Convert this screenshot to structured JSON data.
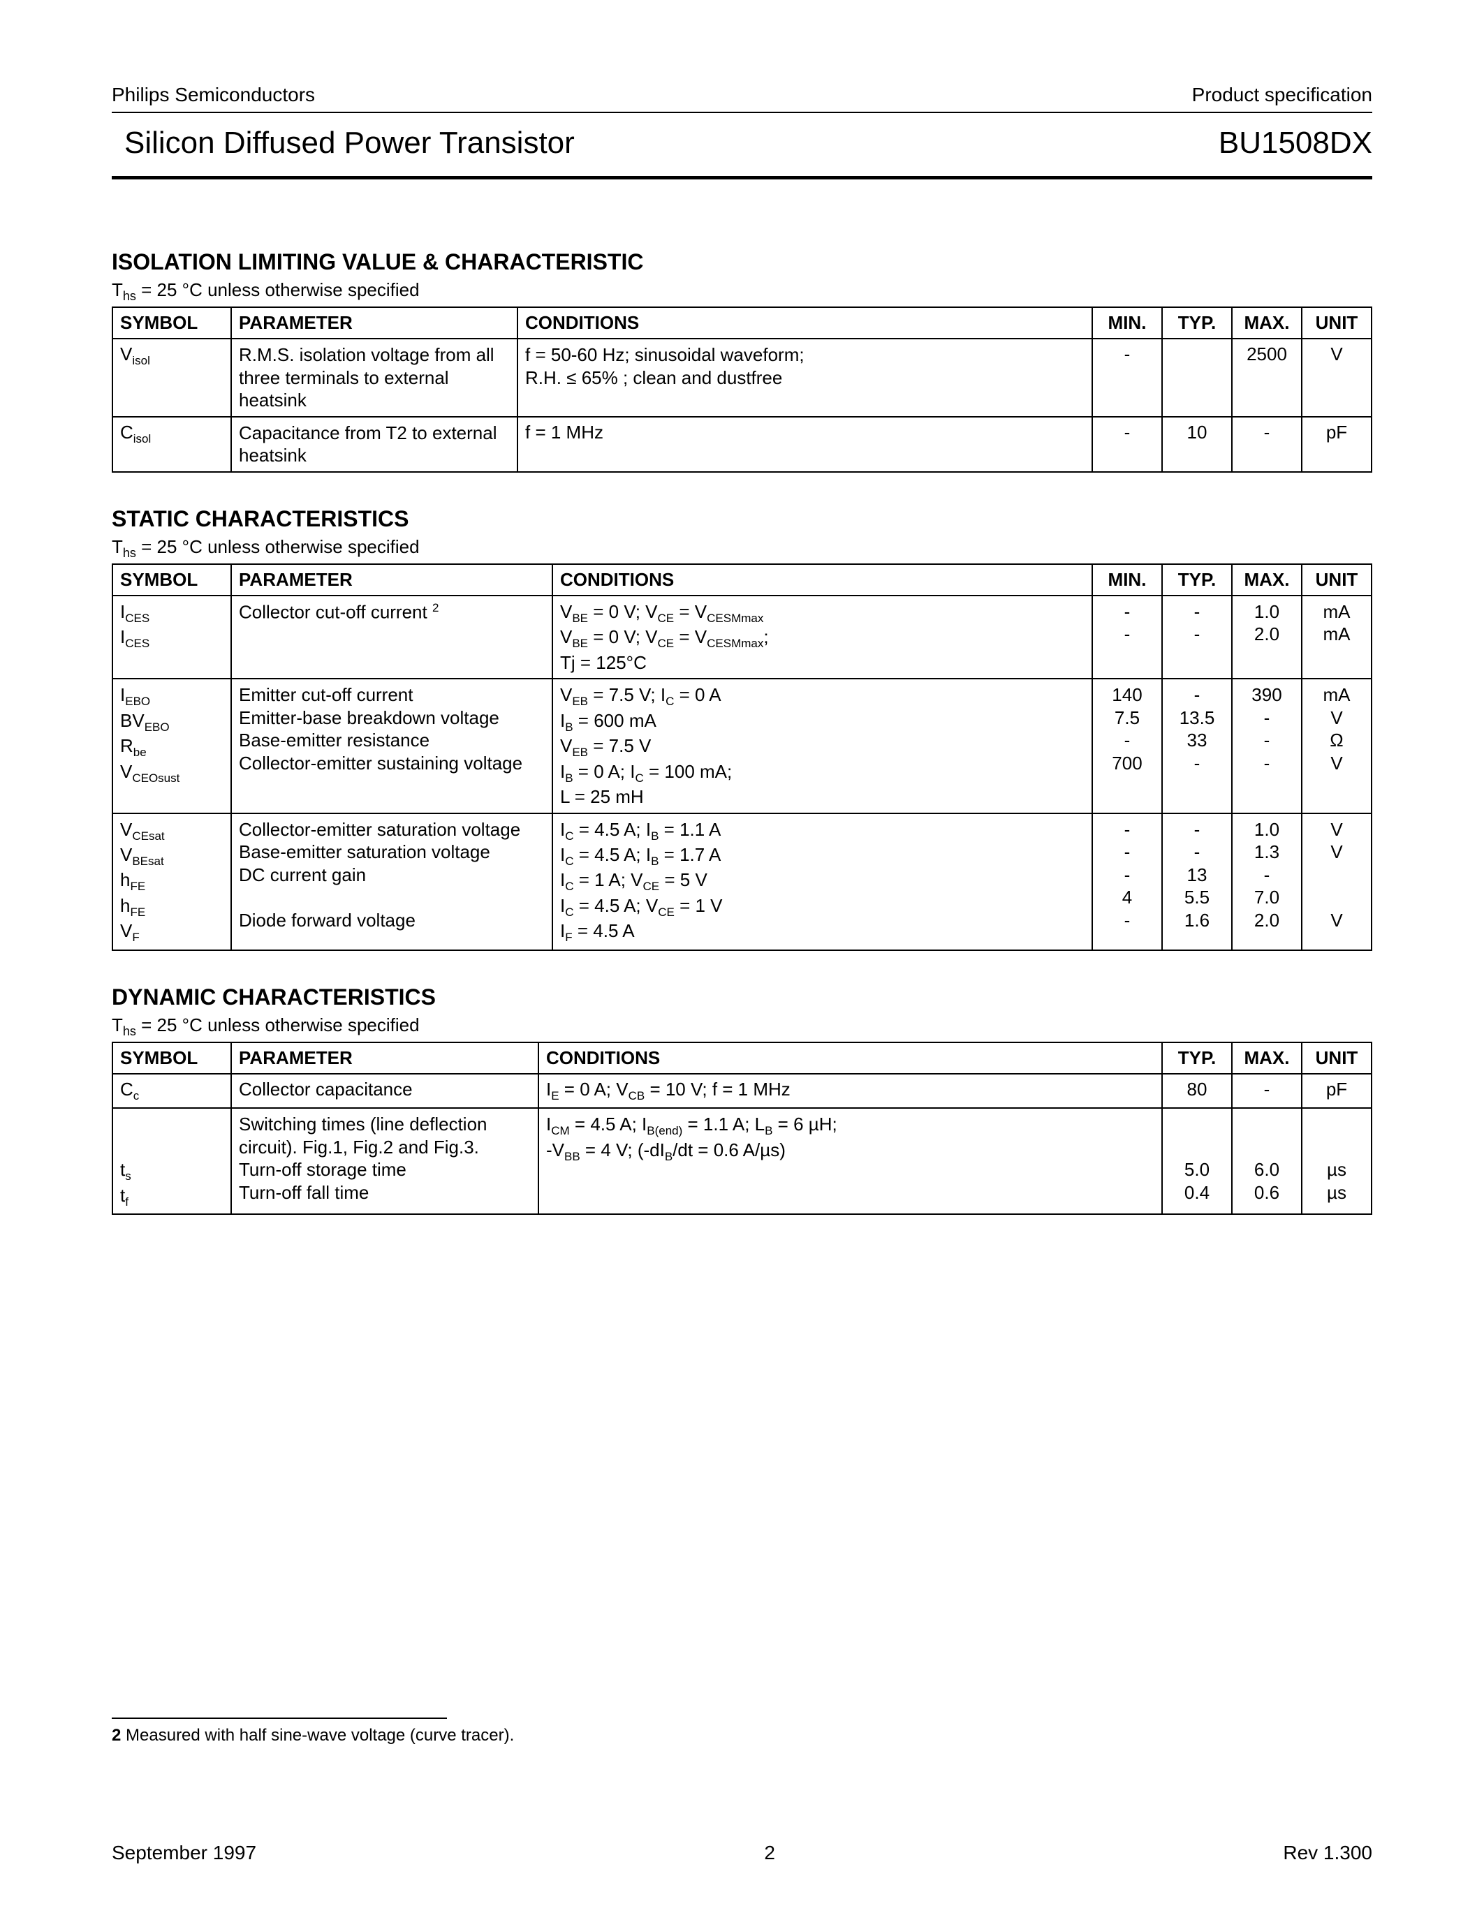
{
  "header": {
    "company": "Philips Semiconductors",
    "doctype": "Product specification",
    "title": "Silicon Diffused Power Transistor",
    "part": "BU1508DX"
  },
  "section1": {
    "title": "ISOLATION LIMITING VALUE & CHARACTERISTIC",
    "note_prefix": "T",
    "note_sub": "hs",
    "note_rest": " = 25 °C unless otherwise specified",
    "headers": {
      "symbol": "SYMBOL",
      "parameter": "PARAMETER",
      "conditions": "CONDITIONS",
      "min": "MIN.",
      "typ": "TYP.",
      "max": "MAX.",
      "unit": "UNIT"
    },
    "rows": [
      {
        "sym_main": "V",
        "sym_sub": "isol",
        "param": "R.M.S. isolation voltage from all three terminals to external heatsink",
        "cond": "f = 50-60 Hz; sinusoidal waveform;\nR.H. ≤ 65% ; clean and dustfree",
        "min": "-",
        "typ": "",
        "max": "2500",
        "unit": "V"
      },
      {
        "sym_main": "C",
        "sym_sub": "isol",
        "param": "Capacitance from T2 to external heatsink",
        "cond": "f = 1 MHz",
        "min": "-",
        "typ": "10",
        "max": "-",
        "unit": "pF"
      }
    ]
  },
  "section2": {
    "title": "STATIC CHARACTERISTICS",
    "note_prefix": "T",
    "note_sub": "hs",
    "note_rest": " = 25 °C unless otherwise specified",
    "headers": {
      "symbol": "SYMBOL",
      "parameter": "PARAMETER",
      "conditions": "CONDITIONS",
      "min": "MIN.",
      "typ": "TYP.",
      "max": "MAX.",
      "unit": "UNIT"
    }
  },
  "section3": {
    "title": "DYNAMIC CHARACTERISTICS",
    "note_prefix": "T",
    "note_sub": "hs",
    "note_rest": " = 25 °C unless otherwise specified",
    "headers": {
      "symbol": "SYMBOL",
      "parameter": "PARAMETER",
      "conditions": "CONDITIONS",
      "typ": "TYP.",
      "max": "MAX.",
      "unit": "UNIT"
    }
  },
  "static_block1": {
    "syms": "I<span class='sub'>CES</span><br>I<span class='sub'>CES</span>",
    "param": "Collector cut-off current <span class='sup'>2</span>",
    "cond": "V<span class='sub'>BE</span> = 0 V; V<span class='sub'>CE</span> = V<span class='sub'>CESMmax</span><br>V<span class='sub'>BE</span> = 0 V; V<span class='sub'>CE</span> = V<span class='sub'>CESMmax</span>;<br>Tj = 125°C",
    "min": "-<br>-",
    "typ": "-<br>-",
    "max": "1.0<br>2.0",
    "unit": "mA<br>mA"
  },
  "static_block2": {
    "syms": "I<span class='sub'>EBO</span><br>BV<span class='sub'>EBO</span><br>R<span class='sub'>be</span><br>V<span class='sub'>CEOsust</span>",
    "param": "Emitter cut-off current<br>Emitter-base breakdown voltage<br>Base-emitter resistance<br>Collector-emitter sustaining voltage",
    "cond": "V<span class='sub'>EB</span> = 7.5 V; I<span class='sub'>C</span> = 0 A<br>I<span class='sub'>B</span> = 600 mA<br>V<span class='sub'>EB</span> = 7.5 V<br>I<span class='sub'>B</span> = 0 A; I<span class='sub'>C</span> = 100 mA;<br>L = 25 mH",
    "min": "140<br>7.5<br>-<br>700",
    "typ": "-<br>13.5<br>33<br>-",
    "max": "390<br>-<br>-<br>-",
    "unit": "mA<br>V<br>Ω<br>V"
  },
  "static_block3": {
    "syms": "V<span class='sub'>CEsat</span><br>V<span class='sub'>BEsat</span><br>h<span class='sub'>FE</span><br>h<span class='sub'>FE</span><br>V<span class='sub'>F</span>",
    "param": "Collector-emitter saturation voltage<br>Base-emitter saturation voltage<br>DC current gain<br><br>Diode forward voltage",
    "cond": "I<span class='sub'>C</span> = 4.5 A; I<span class='sub'>B</span> = 1.1 A<br>I<span class='sub'>C</span> = 4.5 A; I<span class='sub'>B</span> = 1.7 A<br>I<span class='sub'>C</span> = 1 A; V<span class='sub'>CE</span> = 5 V<br>I<span class='sub'>C</span> = 4.5 A; V<span class='sub'>CE</span> = 1 V<br>I<span class='sub'>F</span> = 4.5 A",
    "min": "-<br>-<br>-<br>4<br>-",
    "typ": "-<br>-<br>13<br>5.5<br>1.6",
    "max": "1.0<br>1.3<br>-<br>7.0<br>2.0",
    "unit": "V<br>V<br><br><br>V"
  },
  "dynamic_row1": {
    "sym": "C<span class='sub'>c</span>",
    "param": "Collector capacitance",
    "cond": "I<span class='sub'>E</span> = 0 A; V<span class='sub'>CB</span> = 10 V; f = 1 MHz",
    "typ": "80",
    "max": "-",
    "unit": "pF"
  },
  "dynamic_row2": {
    "sym": "<br><br>t<span class='sub'>s</span><br>t<span class='sub'>f</span>",
    "param": "Switching times (line deflection circuit). Fig.1, Fig.2 and Fig.3.<br>Turn-off storage time<br>Turn-off fall time",
    "cond": "I<span class='sub'>CM</span> = 4.5 A; I<span class='sub'>B(end)</span> = 1.1 A; L<span class='sub'>B</span> = 6 µH;<br>-V<span class='sub'>BB</span> = 4 V; (-dI<span class='sub'>B</span>/dt = 0.6 A/µs)",
    "typ": "<br><br>5.0<br>0.4",
    "max": "<br><br>6.0<br>0.6",
    "unit": "<br><br>µs<br>µs"
  },
  "footnote": {
    "num": "2",
    "text": " Measured with half sine-wave voltage (curve tracer)."
  },
  "footer": {
    "date": "September 1997",
    "page": "2",
    "rev": "Rev 1.300"
  }
}
